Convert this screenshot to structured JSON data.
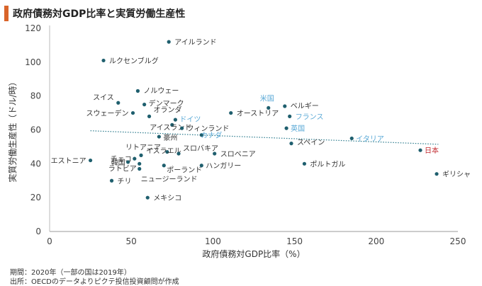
{
  "title": "政府債務対GDP比率と実質労働生産性",
  "footer": {
    "period": "期間：2020年（一部の国は2019年）",
    "source": "出所：OECDのデータよりピクテ投信投資顧問が作成"
  },
  "chart_data": {
    "type": "scatter",
    "xlabel": "政府債務対GDP比率（%）",
    "ylabel": "実質労働生産性（ドル/時）",
    "xlim": [
      0,
      250
    ],
    "ylim": [
      0,
      120
    ],
    "xticks": [
      0,
      50,
      100,
      150,
      200,
      250
    ],
    "yticks": [
      0,
      20,
      40,
      60,
      80,
      100,
      120
    ],
    "grid": false,
    "trendline": {
      "style": "dotted",
      "color": "#2a7a8c",
      "x": [
        25,
        238
      ],
      "y": [
        59.5,
        51.5
      ]
    },
    "colors": {
      "point": "#1f5f6e",
      "label_default": "#333333",
      "label_highlight": "#5aa9d6",
      "label_japan": "#c0272d"
    },
    "points": [
      {
        "name": "アイルランド",
        "x": 73,
        "y": 112,
        "label_color": "default"
      },
      {
        "name": "ルクセンブルグ",
        "x": 33,
        "y": 101,
        "label_color": "default"
      },
      {
        "name": "ノルウェー",
        "x": 54,
        "y": 83,
        "label_color": "default"
      },
      {
        "name": "スイス",
        "x": 42,
        "y": 76,
        "label_color": "default"
      },
      {
        "name": "デンマーク",
        "x": 58,
        "y": 75,
        "label_color": "default"
      },
      {
        "name": "米国",
        "x": 134,
        "y": 73,
        "label_color": "highlight"
      },
      {
        "name": "ベルギー",
        "x": 144,
        "y": 74,
        "label_color": "default"
      },
      {
        "name": "スウェーデン",
        "x": 51,
        "y": 70,
        "label_color": "default"
      },
      {
        "name": "オランダ",
        "x": 61,
        "y": 68,
        "label_color": "default"
      },
      {
        "name": "オーストリア",
        "x": 111,
        "y": 70,
        "label_color": "default"
      },
      {
        "name": "フランス",
        "x": 147,
        "y": 68,
        "label_color": "highlight"
      },
      {
        "name": "ドイツ",
        "x": 77,
        "y": 66,
        "label_color": "highlight"
      },
      {
        "name": "アイスランド",
        "x": 75,
        "y": 63,
        "label_color": "default"
      },
      {
        "name": "フィンランド",
        "x": 81,
        "y": 61,
        "label_color": "default"
      },
      {
        "name": "英国",
        "x": 145,
        "y": 61,
        "label_color": "highlight"
      },
      {
        "name": "豪州",
        "x": 67,
        "y": 56,
        "label_color": "default"
      },
      {
        "name": "カナダ",
        "x": 93,
        "y": 57,
        "label_color": "highlight"
      },
      {
        "name": "イタリア",
        "x": 185,
        "y": 55,
        "label_color": "highlight"
      },
      {
        "name": "スペイン",
        "x": 148,
        "y": 52,
        "label_color": "default"
      },
      {
        "name": "日本",
        "x": 227,
        "y": 48,
        "label_color": "japan"
      },
      {
        "name": "リトアニア",
        "x": 56,
        "y": 45,
        "label_color": "default"
      },
      {
        "name": "イスラエル",
        "x": 72,
        "y": 47,
        "label_color": "default"
      },
      {
        "name": "スロバキア",
        "x": 79,
        "y": 46,
        "label_color": "default"
      },
      {
        "name": "スロベニア",
        "x": 101,
        "y": 46,
        "label_color": "default"
      },
      {
        "name": "チェコ",
        "x": 52,
        "y": 43,
        "label_color": "default"
      },
      {
        "name": "韓国",
        "x": 48,
        "y": 41,
        "label_color": "default"
      },
      {
        "name": "エストニア",
        "x": 25,
        "y": 42,
        "label_color": "default"
      },
      {
        "name": "ラトビア",
        "x": 55,
        "y": 40,
        "label_color": "default"
      },
      {
        "name": "ポーランド",
        "x": 70,
        "y": 39,
        "label_color": "default"
      },
      {
        "name": "ハンガリー",
        "x": 93,
        "y": 39,
        "label_color": "default"
      },
      {
        "name": "ポルトガル",
        "x": 156,
        "y": 40,
        "label_color": "default"
      },
      {
        "name": "ギリシャ",
        "x": 237,
        "y": 34,
        "label_color": "default"
      },
      {
        "name": "ニュージーランド",
        "x": 55,
        "y": 37,
        "label_color": "default"
      },
      {
        "name": "チリ",
        "x": 38,
        "y": 30,
        "label_color": "default"
      },
      {
        "name": "メキシコ",
        "x": 60,
        "y": 20,
        "label_color": "default"
      }
    ]
  }
}
